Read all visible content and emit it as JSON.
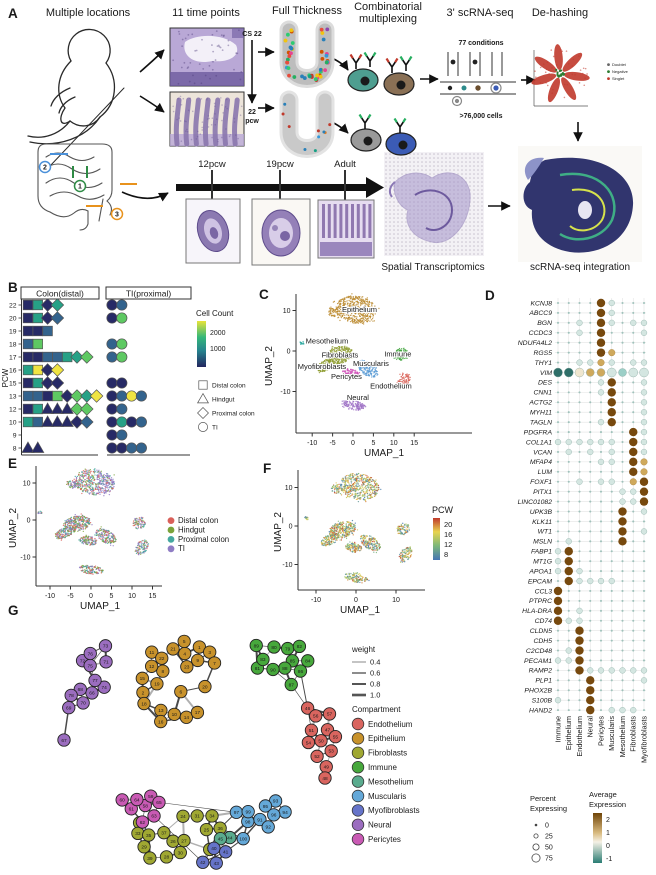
{
  "panelA": {
    "label": "A",
    "titles": {
      "multiple_locations": "Multiple locations",
      "time_points": "11 time points",
      "full_thickness": "Full Thickness",
      "combinatorial1": "Combinatorial",
      "combinatorial2": "multiplexing",
      "scrnaseq": "3' scRNA-seq",
      "dehashing": "De-hashing"
    },
    "annotations": {
      "cs22": "CS 22",
      "pcw22a": "22",
      "pcw22b": "pcw",
      "conditions": "77 conditions",
      "cells": ">76,000 cells",
      "spatial": "Spatial Transcriptomics",
      "integration": "scRNA-seq integration"
    },
    "dehash_legend": [
      {
        "label": "Doublet",
        "color": "#666666"
      },
      {
        "label": "Negative",
        "color": "#2e7d32"
      },
      {
        "label": "Singlet",
        "color": "#c0392b"
      }
    ],
    "location_markers": [
      {
        "num": "1",
        "color": "#2e8b45"
      },
      {
        "num": "2",
        "color": "#4a90d9"
      },
      {
        "num": "3",
        "color": "#e8921c"
      }
    ],
    "timeline": [
      "12pcw",
      "19pcw",
      "Adult"
    ]
  },
  "panelB": {
    "label": "B",
    "headers": [
      "Colon(distal)",
      "TI(proximal)"
    ],
    "ylabel": "PCW",
    "legend": {
      "title": "Cell Count",
      "ticks": [
        "2000",
        "1000"
      ],
      "shapes": [
        {
          "shape": "s",
          "label": "Distal colon"
        },
        {
          "shape": "t",
          "label": "Hindgut"
        },
        {
          "shape": "d",
          "label": "Proximal colon"
        },
        {
          "shape": "c",
          "label": "TI"
        }
      ]
    },
    "colors": {
      "navy": "#272a66",
      "steel": "#33638d",
      "teal": "#26a186",
      "green": "#5ec962",
      "yellow": "#f0e442"
    },
    "rows": [
      {
        "pcw": "22",
        "colon": [
          [
            "s",
            "navy"
          ],
          [
            "s",
            "teal"
          ],
          [
            "d",
            "navy"
          ],
          [
            "d",
            "teal"
          ]
        ],
        "ti": [
          [
            "c",
            "navy"
          ],
          [
            "c",
            "steel"
          ]
        ]
      },
      {
        "pcw": "20",
        "colon": [
          [
            "s",
            "navy"
          ],
          [
            "s",
            "teal"
          ],
          [
            "d",
            "navy"
          ],
          [
            "d",
            "steel"
          ]
        ],
        "ti": [
          [
            "c",
            "navy"
          ],
          [
            "c",
            "green"
          ]
        ]
      },
      {
        "pcw": "19",
        "colon": [
          [
            "s",
            "navy"
          ],
          [
            "s",
            "navy"
          ],
          [
            "s",
            "steel"
          ]
        ],
        "ti": []
      },
      {
        "pcw": "18",
        "colon": [
          [
            "s",
            "steel"
          ],
          [
            "s",
            "green"
          ]
        ],
        "ti": [
          [
            "c",
            "steel"
          ],
          [
            "c",
            "green"
          ]
        ]
      },
      {
        "pcw": "17",
        "colon": [
          [
            "s",
            "navy"
          ],
          [
            "s",
            "navy"
          ],
          [
            "s",
            "steel"
          ],
          [
            "s",
            "steel"
          ],
          [
            "s",
            "teal"
          ],
          [
            "d",
            "teal"
          ],
          [
            "d",
            "green"
          ]
        ],
        "ti": [
          [
            "c",
            "steel"
          ],
          [
            "c",
            "green"
          ]
        ]
      },
      {
        "pcw": "16",
        "colon": [
          [
            "s",
            "teal"
          ],
          [
            "s",
            "yellow"
          ],
          [
            "d",
            "navy"
          ],
          [
            "d",
            "yellow"
          ]
        ],
        "ti": []
      },
      {
        "pcw": "15",
        "colon": [
          [
            "s",
            "navy"
          ],
          [
            "s",
            "teal"
          ],
          [
            "d",
            "navy"
          ],
          [
            "d",
            "navy"
          ]
        ],
        "ti": [
          [
            "c",
            "navy"
          ],
          [
            "c",
            "navy"
          ]
        ]
      },
      {
        "pcw": "13",
        "colon": [
          [
            "s",
            "steel"
          ],
          [
            "s",
            "steel"
          ],
          [
            "s",
            "navy"
          ],
          [
            "s",
            "green"
          ],
          [
            "d",
            "navy"
          ],
          [
            "d",
            "green"
          ],
          [
            "d",
            "teal"
          ],
          [
            "d",
            "yellow"
          ]
        ],
        "ti": [
          [
            "c",
            "navy"
          ],
          [
            "c",
            "steel"
          ],
          [
            "c",
            "yellow"
          ],
          [
            "c",
            "steel"
          ]
        ]
      },
      {
        "pcw": "12",
        "colon": [
          [
            "s",
            "navy"
          ],
          [
            "s",
            "teal"
          ],
          [
            "t",
            "navy"
          ],
          [
            "t",
            "navy"
          ],
          [
            "t",
            "navy"
          ],
          [
            "d",
            "green"
          ],
          [
            "d",
            "green"
          ]
        ],
        "ti": [
          [
            "c",
            "navy"
          ],
          [
            "c",
            "steel"
          ]
        ]
      },
      {
        "pcw": "10",
        "colon": [
          [
            "s",
            "teal"
          ],
          [
            "s",
            "steel"
          ],
          [
            "t",
            "navy"
          ],
          [
            "t",
            "navy"
          ],
          [
            "t",
            "navy"
          ],
          [
            "d",
            "navy"
          ],
          [
            "d",
            "steel"
          ]
        ],
        "ti": [
          [
            "c",
            "navy"
          ],
          [
            "c",
            "teal"
          ],
          [
            "c",
            "navy"
          ],
          [
            "c",
            "steel"
          ]
        ]
      },
      {
        "pcw": "9",
        "colon": [],
        "ti": [
          [
            "c",
            "navy"
          ],
          [
            "c",
            "steel"
          ]
        ]
      },
      {
        "pcw": "8",
        "colon": [
          [
            "t",
            "navy"
          ],
          [
            "t",
            "navy"
          ]
        ],
        "ti": [
          [
            "c",
            "navy"
          ],
          [
            "c",
            "navy"
          ],
          [
            "c",
            "steel"
          ],
          [
            "c",
            "steel"
          ]
        ]
      }
    ]
  },
  "panelC": {
    "label": "C",
    "xlabel": "UMAP_1",
    "ylabel": "UMAP_2",
    "xticks": [
      "-10",
      "-5",
      "0",
      "5",
      "10",
      "15"
    ],
    "yticks": [
      "10",
      "0",
      "-10"
    ],
    "clusters": [
      {
        "name": "Epithelium",
        "color": "#bb8a2e"
      },
      {
        "name": "Mesothelium",
        "color": "#2aa8a0"
      },
      {
        "name": "Fibroblasts",
        "color": "#8f9e33"
      },
      {
        "name": "Myofibroblasts",
        "color": "#8f9e33"
      },
      {
        "name": "Muscularis",
        "color": "#5b9bd5"
      },
      {
        "name": "Pericytes",
        "color": "#cf52b8"
      },
      {
        "name": "Immune",
        "color": "#3fa33c"
      },
      {
        "name": "Endothelium",
        "color": "#d96459"
      },
      {
        "name": "Neural",
        "color": "#9c6fc4"
      }
    ]
  },
  "panelD": {
    "label": "D",
    "columns": [
      "Immune",
      "Epithelium",
      "Endothelium",
      "Neural",
      "Pericytes",
      "Muscularis",
      "Mesothelium",
      "Fibroblasts",
      "Myofibroblasts"
    ],
    "genes": [
      {
        "g": "KCNJ8",
        "hi": [
          4
        ],
        "mid": [
          5
        ]
      },
      {
        "g": "ABCC9",
        "hi": [
          4
        ],
        "mid": [
          5
        ]
      },
      {
        "g": "BGN",
        "hi": [
          4
        ],
        "mid": [
          2,
          5,
          7,
          8
        ]
      },
      {
        "g": "CCDC3",
        "hi": [
          4
        ],
        "mid": [
          2,
          8
        ]
      },
      {
        "g": "NDUFA4L2",
        "hi": [
          4
        ]
      },
      {
        "g": "RGS5",
        "hi": [
          4
        ],
        "tan": [
          5
        ]
      },
      {
        "g": "THY1",
        "tan": [
          4
        ],
        "mid": [
          2,
          3,
          5,
          7,
          8
        ]
      },
      {
        "g": "VIM",
        "cells": [
          [
            "dk",
            4.5
          ],
          [
            "dk",
            4.5
          ],
          [
            "cream",
            4.5
          ],
          [
            "tan",
            4
          ],
          [
            "tan",
            4
          ],
          [
            "pale",
            4.5
          ],
          [
            "teal",
            4
          ],
          [
            "pale",
            4.5
          ],
          [
            "pale",
            4.5
          ]
        ]
      },
      {
        "g": "DES",
        "hi": [
          5
        ],
        "mid": [
          4,
          8
        ]
      },
      {
        "g": "CNN1",
        "hi": [
          5
        ],
        "mid": [
          4,
          8
        ]
      },
      {
        "g": "ACTG2",
        "hi": [
          5
        ],
        "mid": [
          8
        ]
      },
      {
        "g": "MYH11",
        "hi": [
          5
        ],
        "mid": [
          8
        ]
      },
      {
        "g": "TAGLN",
        "hi": [
          5
        ],
        "mid": [
          4,
          8
        ]
      },
      {
        "g": "PDGFRA",
        "hi": [
          7
        ],
        "mid": [
          8
        ]
      },
      {
        "g": "COL1A1",
        "hi": [
          7
        ],
        "mid": [
          0,
          1,
          2,
          3,
          4,
          5,
          8
        ]
      },
      {
        "g": "VCAN",
        "hi": [
          7
        ],
        "mid": [
          1,
          3,
          5,
          8
        ]
      },
      {
        "g": "MFAP4",
        "hi": [
          7
        ],
        "tan": [
          8
        ],
        "mid": [
          4,
          5
        ]
      },
      {
        "g": "LUM",
        "hi": [
          7
        ],
        "tan": [
          8
        ]
      },
      {
        "g": "FOXF1",
        "hi": [
          8
        ],
        "tan": [
          7
        ],
        "mid": [
          2,
          4,
          5
        ]
      },
      {
        "g": "PITX1",
        "hi": [
          8
        ],
        "mid": [
          6,
          7
        ]
      },
      {
        "g": "LINC01082",
        "hi": [
          8
        ],
        "mid": [
          6,
          7
        ]
      },
      {
        "g": "UPK3B",
        "hi": [
          6
        ],
        "mid": [
          8
        ]
      },
      {
        "g": "KLK11",
        "hi": [
          6
        ]
      },
      {
        "g": "WT1",
        "hi": [
          6
        ],
        "mid": [
          8
        ]
      },
      {
        "g": "MSLN",
        "hi": [
          6
        ],
        "mid": [
          1
        ]
      },
      {
        "g": "FABP1",
        "hi": [
          1
        ],
        "mid": [
          0
        ]
      },
      {
        "g": "MT1G",
        "hi": [
          1
        ],
        "mid": [
          0
        ]
      },
      {
        "g": "APOA1",
        "hi": [
          1
        ],
        "mid": [
          0,
          2
        ]
      },
      {
        "g": "EPCAM",
        "hi": [
          1
        ],
        "mid": [
          2,
          3,
          4,
          5
        ]
      },
      {
        "g": "CCL3",
        "hi": [
          0
        ]
      },
      {
        "g": "PTPRC",
        "hi": [
          0
        ]
      },
      {
        "g": "HLA-DRA",
        "hi": [
          0
        ],
        "mid": [
          2
        ]
      },
      {
        "g": "CD74",
        "hi": [
          0
        ],
        "mid": [
          1,
          2
        ]
      },
      {
        "g": "CLDN5",
        "hi": [
          2
        ]
      },
      {
        "g": "CDH5",
        "hi": [
          2
        ]
      },
      {
        "g": "C2CD48",
        "hi": [
          2
        ],
        "mid": [
          1
        ]
      },
      {
        "g": "PECAM1",
        "hi": [
          2
        ],
        "mid": [
          0,
          1
        ]
      },
      {
        "g": "RAMP2",
        "hi": [
          2
        ],
        "mid": [
          3,
          4,
          5,
          6,
          7,
          8
        ]
      },
      {
        "g": "PLP1",
        "hi": [
          3
        ],
        "mid": [
          8
        ]
      },
      {
        "g": "PHOX2B",
        "hi": [
          3
        ]
      },
      {
        "g": "S100B",
        "hi": [
          3
        ],
        "mid": [
          0
        ]
      },
      {
        "g": "HAND2",
        "hi": [
          3
        ],
        "mid": [
          5,
          6,
          7
        ]
      }
    ],
    "percent_legend": {
      "title1": "Percent",
      "title2": "Expressing",
      "values": [
        "0",
        "25",
        "50",
        "75"
      ]
    },
    "avg_legend": {
      "title1": "Average",
      "title2": "Expression",
      "ticks": [
        "2",
        "1",
        "0",
        "-1"
      ]
    }
  },
  "panelE": {
    "label": "E",
    "xlabel": "UMAP_1",
    "ylabel": "UMAP_2",
    "xticks": [
      "-10",
      "-5",
      "0",
      "5",
      "10",
      "15"
    ],
    "yticks": [
      "10",
      "0",
      "-10"
    ],
    "legend": [
      {
        "label": "Distal colon",
        "color": "#d9605a"
      },
      {
        "label": "Hindgut",
        "color": "#7aa33b"
      },
      {
        "label": "Proximal colon",
        "color": "#45a8a0"
      },
      {
        "label": "TI",
        "color": "#8f7dc4"
      }
    ]
  },
  "panelF": {
    "label": "F",
    "xlabel": "UMAP_1",
    "ylabel": "UMAP_2",
    "xticks": [
      "-10",
      "0",
      "10"
    ],
    "yticks": [
      "10",
      "0",
      "-10"
    ],
    "legend": {
      "title": "PCW",
      "ticks": [
        "20",
        "16",
        "12",
        "8"
      ]
    }
  },
  "panelG": {
    "label": "G",
    "weight_legend": {
      "title": "weight",
      "values": [
        "0.4",
        "0.6",
        "0.8",
        "1.0"
      ]
    },
    "compartment_title": "Compartment",
    "compartments": [
      {
        "name": "Endothelium",
        "color": "#d9655f",
        "nodes": [
          46,
          47,
          48,
          49,
          50,
          51,
          52,
          53,
          54,
          55,
          56,
          57
        ]
      },
      {
        "name": "Epithelium",
        "color": "#c8922b",
        "nodes": [
          1,
          2,
          3,
          4,
          5,
          6,
          7,
          8,
          9,
          10,
          11,
          12,
          13,
          14,
          15,
          16,
          17,
          18,
          19,
          20,
          21,
          22,
          23
        ]
      },
      {
        "name": "Fibroblasts",
        "color": "#a0a832",
        "nodes": [
          24,
          25,
          26,
          27,
          28,
          29,
          30,
          31,
          32,
          33,
          34,
          35,
          36,
          37,
          38,
          39
        ]
      },
      {
        "name": "Immune",
        "color": "#47a83c",
        "nodes": [
          79,
          80,
          81,
          82,
          83,
          84,
          85,
          86,
          87,
          88,
          89,
          90
        ]
      },
      {
        "name": "Mesothelium",
        "color": "#5aab8e",
        "nodes": [
          44,
          45
        ]
      },
      {
        "name": "Muscularis",
        "color": "#64a8d8",
        "nodes": [
          91,
          92,
          93,
          94,
          95,
          96,
          97,
          98,
          99,
          100
        ]
      },
      {
        "name": "Myofibroblasts",
        "color": "#6674c9",
        "nodes": [
          40,
          41,
          42,
          43
        ]
      },
      {
        "name": "Neural",
        "color": "#9b6dbf",
        "nodes": [
          66,
          67,
          68,
          69,
          70,
          71,
          72,
          73,
          74,
          75,
          76,
          77,
          78
        ]
      },
      {
        "name": "Pericytes",
        "color": "#c95ab4",
        "nodes": [
          58,
          59,
          60,
          61,
          62,
          63,
          64,
          65
        ]
      }
    ]
  }
}
